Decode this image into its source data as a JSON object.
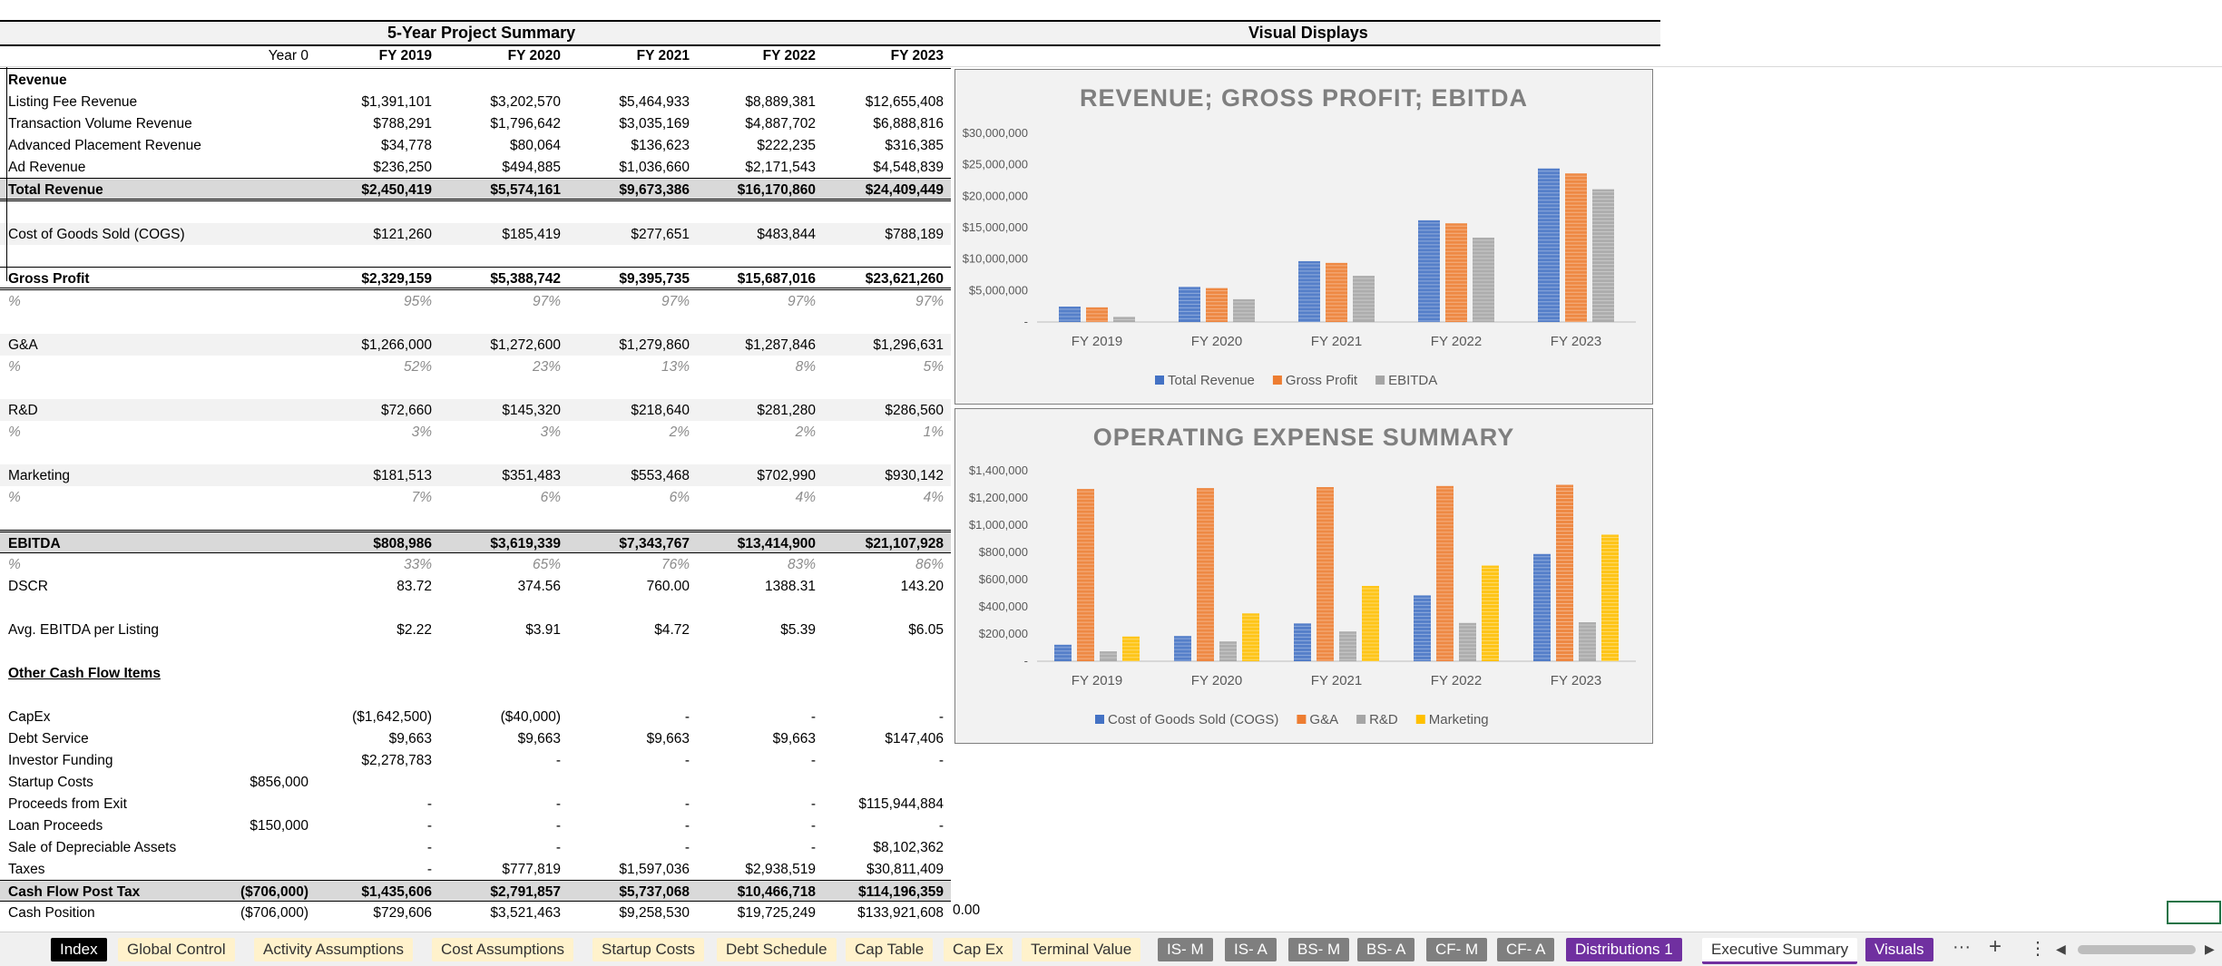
{
  "header": {
    "summary_title": "5-Year Project Summary",
    "visuals_title": "Visual Displays"
  },
  "columns": [
    "Year 0",
    "FY 2019",
    "FY 2020",
    "FY 2021",
    "FY 2022",
    "FY 2023"
  ],
  "sections": {
    "revenue": "Revenue",
    "other_cash": "Other Cash Flow Items"
  },
  "rows": {
    "listing_fee": {
      "label": "Listing Fee Revenue",
      "v": [
        "",
        "$1,391,101",
        "$3,202,570",
        "$5,464,933",
        "$8,889,381",
        "$12,655,408"
      ]
    },
    "transaction": {
      "label": "Transaction Volume Revenue",
      "v": [
        "",
        "$788,291",
        "$1,796,642",
        "$3,035,169",
        "$4,887,702",
        "$6,888,816"
      ]
    },
    "advanced": {
      "label": "Advanced Placement Revenue",
      "v": [
        "",
        "$34,778",
        "$80,064",
        "$136,623",
        "$222,235",
        "$316,385"
      ]
    },
    "ad": {
      "label": "Ad Revenue",
      "v": [
        "",
        "$236,250",
        "$494,885",
        "$1,036,660",
        "$2,171,543",
        "$4,548,839"
      ]
    },
    "total_revenue": {
      "label": "Total Revenue",
      "v": [
        "",
        "$2,450,419",
        "$5,574,161",
        "$9,673,386",
        "$16,170,860",
        "$24,409,449"
      ]
    },
    "cogs": {
      "label": "Cost of Goods Sold (COGS)",
      "v": [
        "",
        "$121,260",
        "$185,419",
        "$277,651",
        "$483,844",
        "$788,189"
      ]
    },
    "gross_profit": {
      "label": "Gross Profit",
      "v": [
        "",
        "$2,329,159",
        "$5,388,742",
        "$9,395,735",
        "$15,687,016",
        "$23,621,260"
      ]
    },
    "gp_pct": {
      "label": "%",
      "v": [
        "",
        "95%",
        "97%",
        "97%",
        "97%",
        "97%"
      ]
    },
    "ga": {
      "label": "G&A",
      "v": [
        "",
        "$1,266,000",
        "$1,272,600",
        "$1,279,860",
        "$1,287,846",
        "$1,296,631"
      ]
    },
    "ga_pct": {
      "label": "%",
      "v": [
        "",
        "52%",
        "23%",
        "13%",
        "8%",
        "5%"
      ]
    },
    "rd": {
      "label": "R&D",
      "v": [
        "",
        "$72,660",
        "$145,320",
        "$218,640",
        "$281,280",
        "$286,560"
      ]
    },
    "rd_pct": {
      "label": "%",
      "v": [
        "",
        "3%",
        "3%",
        "2%",
        "2%",
        "1%"
      ]
    },
    "marketing": {
      "label": "Marketing",
      "v": [
        "",
        "$181,513",
        "$351,483",
        "$553,468",
        "$702,990",
        "$930,142"
      ]
    },
    "mk_pct": {
      "label": "%",
      "v": [
        "",
        "7%",
        "6%",
        "6%",
        "4%",
        "4%"
      ]
    },
    "ebitda": {
      "label": "EBITDA",
      "v": [
        "",
        "$808,986",
        "$3,619,339",
        "$7,343,767",
        "$13,414,900",
        "$21,107,928"
      ]
    },
    "eb_pct": {
      "label": "%",
      "v": [
        "",
        "33%",
        "65%",
        "76%",
        "83%",
        "86%"
      ]
    },
    "dscr": {
      "label": "DSCR",
      "v": [
        "",
        "83.72",
        "374.56",
        "760.00",
        "1388.31",
        "143.20"
      ]
    },
    "avg_ebitda": {
      "label": "Avg. EBITDA per Listing",
      "v": [
        "",
        "$2.22",
        "$3.91",
        "$4.72",
        "$5.39",
        "$6.05"
      ]
    },
    "capex": {
      "label": "CapEx",
      "v": [
        "",
        "($1,642,500)",
        "($40,000)",
        "-",
        "-",
        "-"
      ]
    },
    "debt_service": {
      "label": "Debt Service",
      "v": [
        "",
        "$9,663",
        "$9,663",
        "$9,663",
        "$9,663",
        "$147,406"
      ]
    },
    "investor": {
      "label": "Investor Funding",
      "v": [
        "",
        "$2,278,783",
        "-",
        "-",
        "-",
        "-"
      ]
    },
    "startup": {
      "label": "Startup Costs",
      "v": [
        "$856,000",
        "",
        "",
        "",
        "",
        ""
      ]
    },
    "exit": {
      "label": "Proceeds from Exit",
      "v": [
        "",
        "-",
        "-",
        "-",
        "-",
        "$115,944,884"
      ]
    },
    "loan": {
      "label": "Loan Proceeds",
      "v": [
        "$150,000",
        "-",
        "-",
        "-",
        "-",
        "-"
      ]
    },
    "sale": {
      "label": "Sale of Depreciable Assets",
      "v": [
        "",
        "-",
        "-",
        "-",
        "-",
        "$8,102,362"
      ]
    },
    "taxes": {
      "label": "Taxes",
      "v": [
        "",
        "-",
        "$777,819",
        "$1,597,036",
        "$2,938,519",
        "$30,811,409"
      ]
    },
    "cf_post_tax": {
      "label": "Cash Flow Post Tax",
      "v": [
        "($706,000)",
        "$1,435,606",
        "$2,791,857",
        "$5,737,068",
        "$10,466,718",
        "$114,196,359"
      ]
    },
    "cash_position": {
      "label": "Cash Position",
      "v": [
        "($706,000)",
        "$729,606",
        "$3,521,463",
        "$9,258,530",
        "$19,725,249",
        "$133,921,608"
      ]
    }
  },
  "cash_extra": "0.00",
  "chart_data": [
    {
      "type": "bar",
      "title": "REVENUE; GROSS PROFIT; EBITDA",
      "categories": [
        "FY 2019",
        "FY 2020",
        "FY 2021",
        "FY 2022",
        "FY 2023"
      ],
      "series": [
        {
          "name": "Total Revenue",
          "color": "#4472c4",
          "values": [
            2450419,
            5574161,
            9673386,
            16170860,
            24409449
          ]
        },
        {
          "name": "Gross Profit",
          "color": "#ed7d31",
          "values": [
            2329159,
            5388742,
            9395735,
            15687016,
            23621260
          ]
        },
        {
          "name": "EBITDA",
          "color": "#a5a5a5",
          "values": [
            808986,
            3619339,
            7343767,
            13414900,
            21107928
          ]
        }
      ],
      "ylim": [
        0,
        30000000
      ],
      "yticks": [
        "-",
        "$5,000,000",
        "$10,000,000",
        "$15,000,000",
        "$20,000,000",
        "$25,000,000",
        "$30,000,000"
      ],
      "legend": "bottom"
    },
    {
      "type": "bar",
      "title": "OPERATING EXPENSE SUMMARY",
      "categories": [
        "FY 2019",
        "FY 2020",
        "FY 2021",
        "FY 2022",
        "FY 2023"
      ],
      "series": [
        {
          "name": "Cost of Goods Sold (COGS)",
          "color": "#4472c4",
          "values": [
            121260,
            185419,
            277651,
            483844,
            788189
          ]
        },
        {
          "name": "G&A",
          "color": "#ed7d31",
          "values": [
            1266000,
            1272600,
            1279860,
            1287846,
            1296631
          ]
        },
        {
          "name": "R&D",
          "color": "#a5a5a5",
          "values": [
            72660,
            145320,
            218640,
            281280,
            286560
          ]
        },
        {
          "name": "Marketing",
          "color": "#ffc000",
          "values": [
            181513,
            351483,
            553468,
            702990,
            930142
          ]
        }
      ],
      "ylim": [
        0,
        1400000
      ],
      "yticks": [
        "-",
        "$200,000",
        "$400,000",
        "$600,000",
        "$800,000",
        "$1,000,000",
        "$1,200,000",
        "$1,400,000"
      ],
      "legend": "bottom"
    }
  ],
  "tabs": [
    {
      "label": "Index",
      "style": "k"
    },
    {
      "label": "Global Control",
      "style": "y"
    },
    {
      "label": "Activity Assumptions",
      "style": "y"
    },
    {
      "label": "Cost Assumptions",
      "style": "y"
    },
    {
      "label": "Startup Costs",
      "style": "y"
    },
    {
      "label": "Debt Schedule",
      "style": "y"
    },
    {
      "label": "Cap Table",
      "style": "y"
    },
    {
      "label": "Cap Ex",
      "style": "y"
    },
    {
      "label": "Terminal Value",
      "style": "y"
    },
    {
      "label": "IS- M",
      "style": "g"
    },
    {
      "label": "IS- A",
      "style": "g"
    },
    {
      "label": "BS- M",
      "style": "g"
    },
    {
      "label": "BS- A",
      "style": "g"
    },
    {
      "label": "CF- M",
      "style": "g"
    },
    {
      "label": "CF- A",
      "style": "g"
    },
    {
      "label": "Distributions 1",
      "style": "p"
    },
    {
      "label": "Executive Summary",
      "style": "act"
    },
    {
      "label": "Visuals",
      "style": "p"
    }
  ],
  "tab_controls": {
    "more": "···",
    "add": "+",
    "menu": "⋮",
    "left": "◀",
    "right": "▶"
  },
  "icons": [
    "ellipsis-icon",
    "plus-icon",
    "kebab-icon",
    "scroll-left-icon",
    "scroll-right-icon"
  ]
}
